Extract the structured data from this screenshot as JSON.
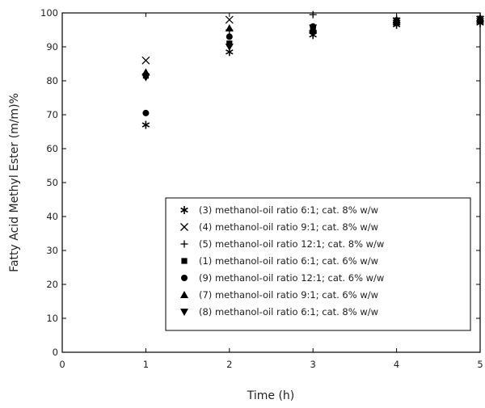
{
  "chart_data": {
    "type": "scatter",
    "xlabel": "Time (h)",
    "ylabel": "Fatty Acid Methyl Ester (m/m)%",
    "xlim": [
      0,
      5
    ],
    "ylim": [
      0,
      100
    ],
    "x_ticks": [
      0,
      1,
      2,
      3,
      4,
      5
    ],
    "y_ticks": [
      0,
      10,
      20,
      30,
      40,
      50,
      60,
      70,
      80,
      90,
      100
    ],
    "grid": false,
    "legend_position": "bottom-right",
    "series": [
      {
        "name": "(3) methanol-oil ratio 6:1; cat. 8% w/w",
        "marker": "asterisk",
        "x": [
          1,
          2,
          3,
          4,
          5
        ],
        "y": [
          67,
          88.5,
          93.5,
          96.5,
          97
        ]
      },
      {
        "name": "(4) methanol-oil ratio 9:1; cat. 8% w/w",
        "marker": "x",
        "x": [
          1,
          2,
          3,
          4,
          5
        ],
        "y": [
          86,
          98,
          95.5,
          97.5,
          98
        ]
      },
      {
        "name": "(5) methanol-oil ratio 12:1; cat. 8% w/w",
        "marker": "plus",
        "x": [
          1,
          2,
          3,
          4,
          5
        ],
        "y": [
          82,
          95,
          99.5,
          98.5,
          99
        ]
      },
      {
        "name": "(1) methanol-oil ratio 6:1; cat. 6% w/w",
        "marker": "square",
        "x": [
          1,
          2,
          3,
          4,
          5
        ],
        "y": [
          81.5,
          91,
          95,
          97,
          97.5
        ]
      },
      {
        "name": "(9) methanol-oil ratio 12:1; cat. 6% w/w",
        "marker": "circle",
        "x": [
          1,
          2,
          3,
          4,
          5
        ],
        "y": [
          70.5,
          93,
          96,
          97.5,
          98
        ]
      },
      {
        "name": "(7) methanol-oil ratio 9:1; cat. 6% w/w",
        "marker": "triangle-up",
        "x": [
          1,
          2,
          3,
          4,
          5
        ],
        "y": [
          82.5,
          95.5,
          95,
          98,
          98.5
        ]
      },
      {
        "name": "(8) methanol-oil ratio 6:1; cat. 8% w/w",
        "marker": "triangle-down",
        "x": [
          1,
          2,
          3,
          4,
          5
        ],
        "y": [
          81,
          90,
          94,
          97,
          97.5
        ]
      }
    ]
  }
}
